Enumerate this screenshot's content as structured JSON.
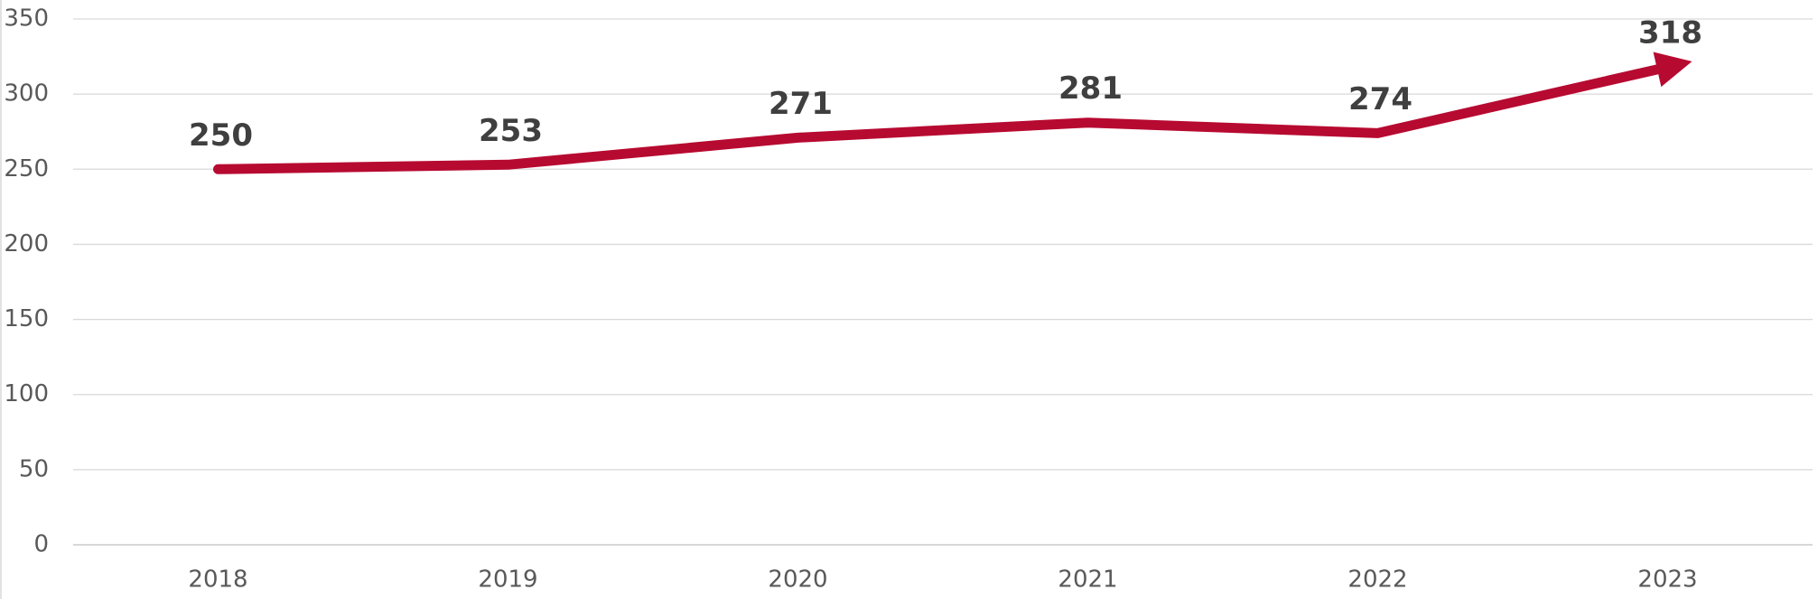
{
  "chart_data": {
    "type": "line",
    "categories": [
      "2018",
      "2019",
      "2020",
      "2021",
      "2022",
      "2023"
    ],
    "series": [
      {
        "color": "#b70a31",
        "values": [
          250,
          253,
          271,
          281,
          274,
          318
        ]
      }
    ],
    "ylim": [
      0,
      350
    ],
    "yticks": [
      0,
      50,
      100,
      150,
      200,
      250,
      300,
      350
    ],
    "grid": true,
    "data_labels": true,
    "arrow_end": true
  }
}
